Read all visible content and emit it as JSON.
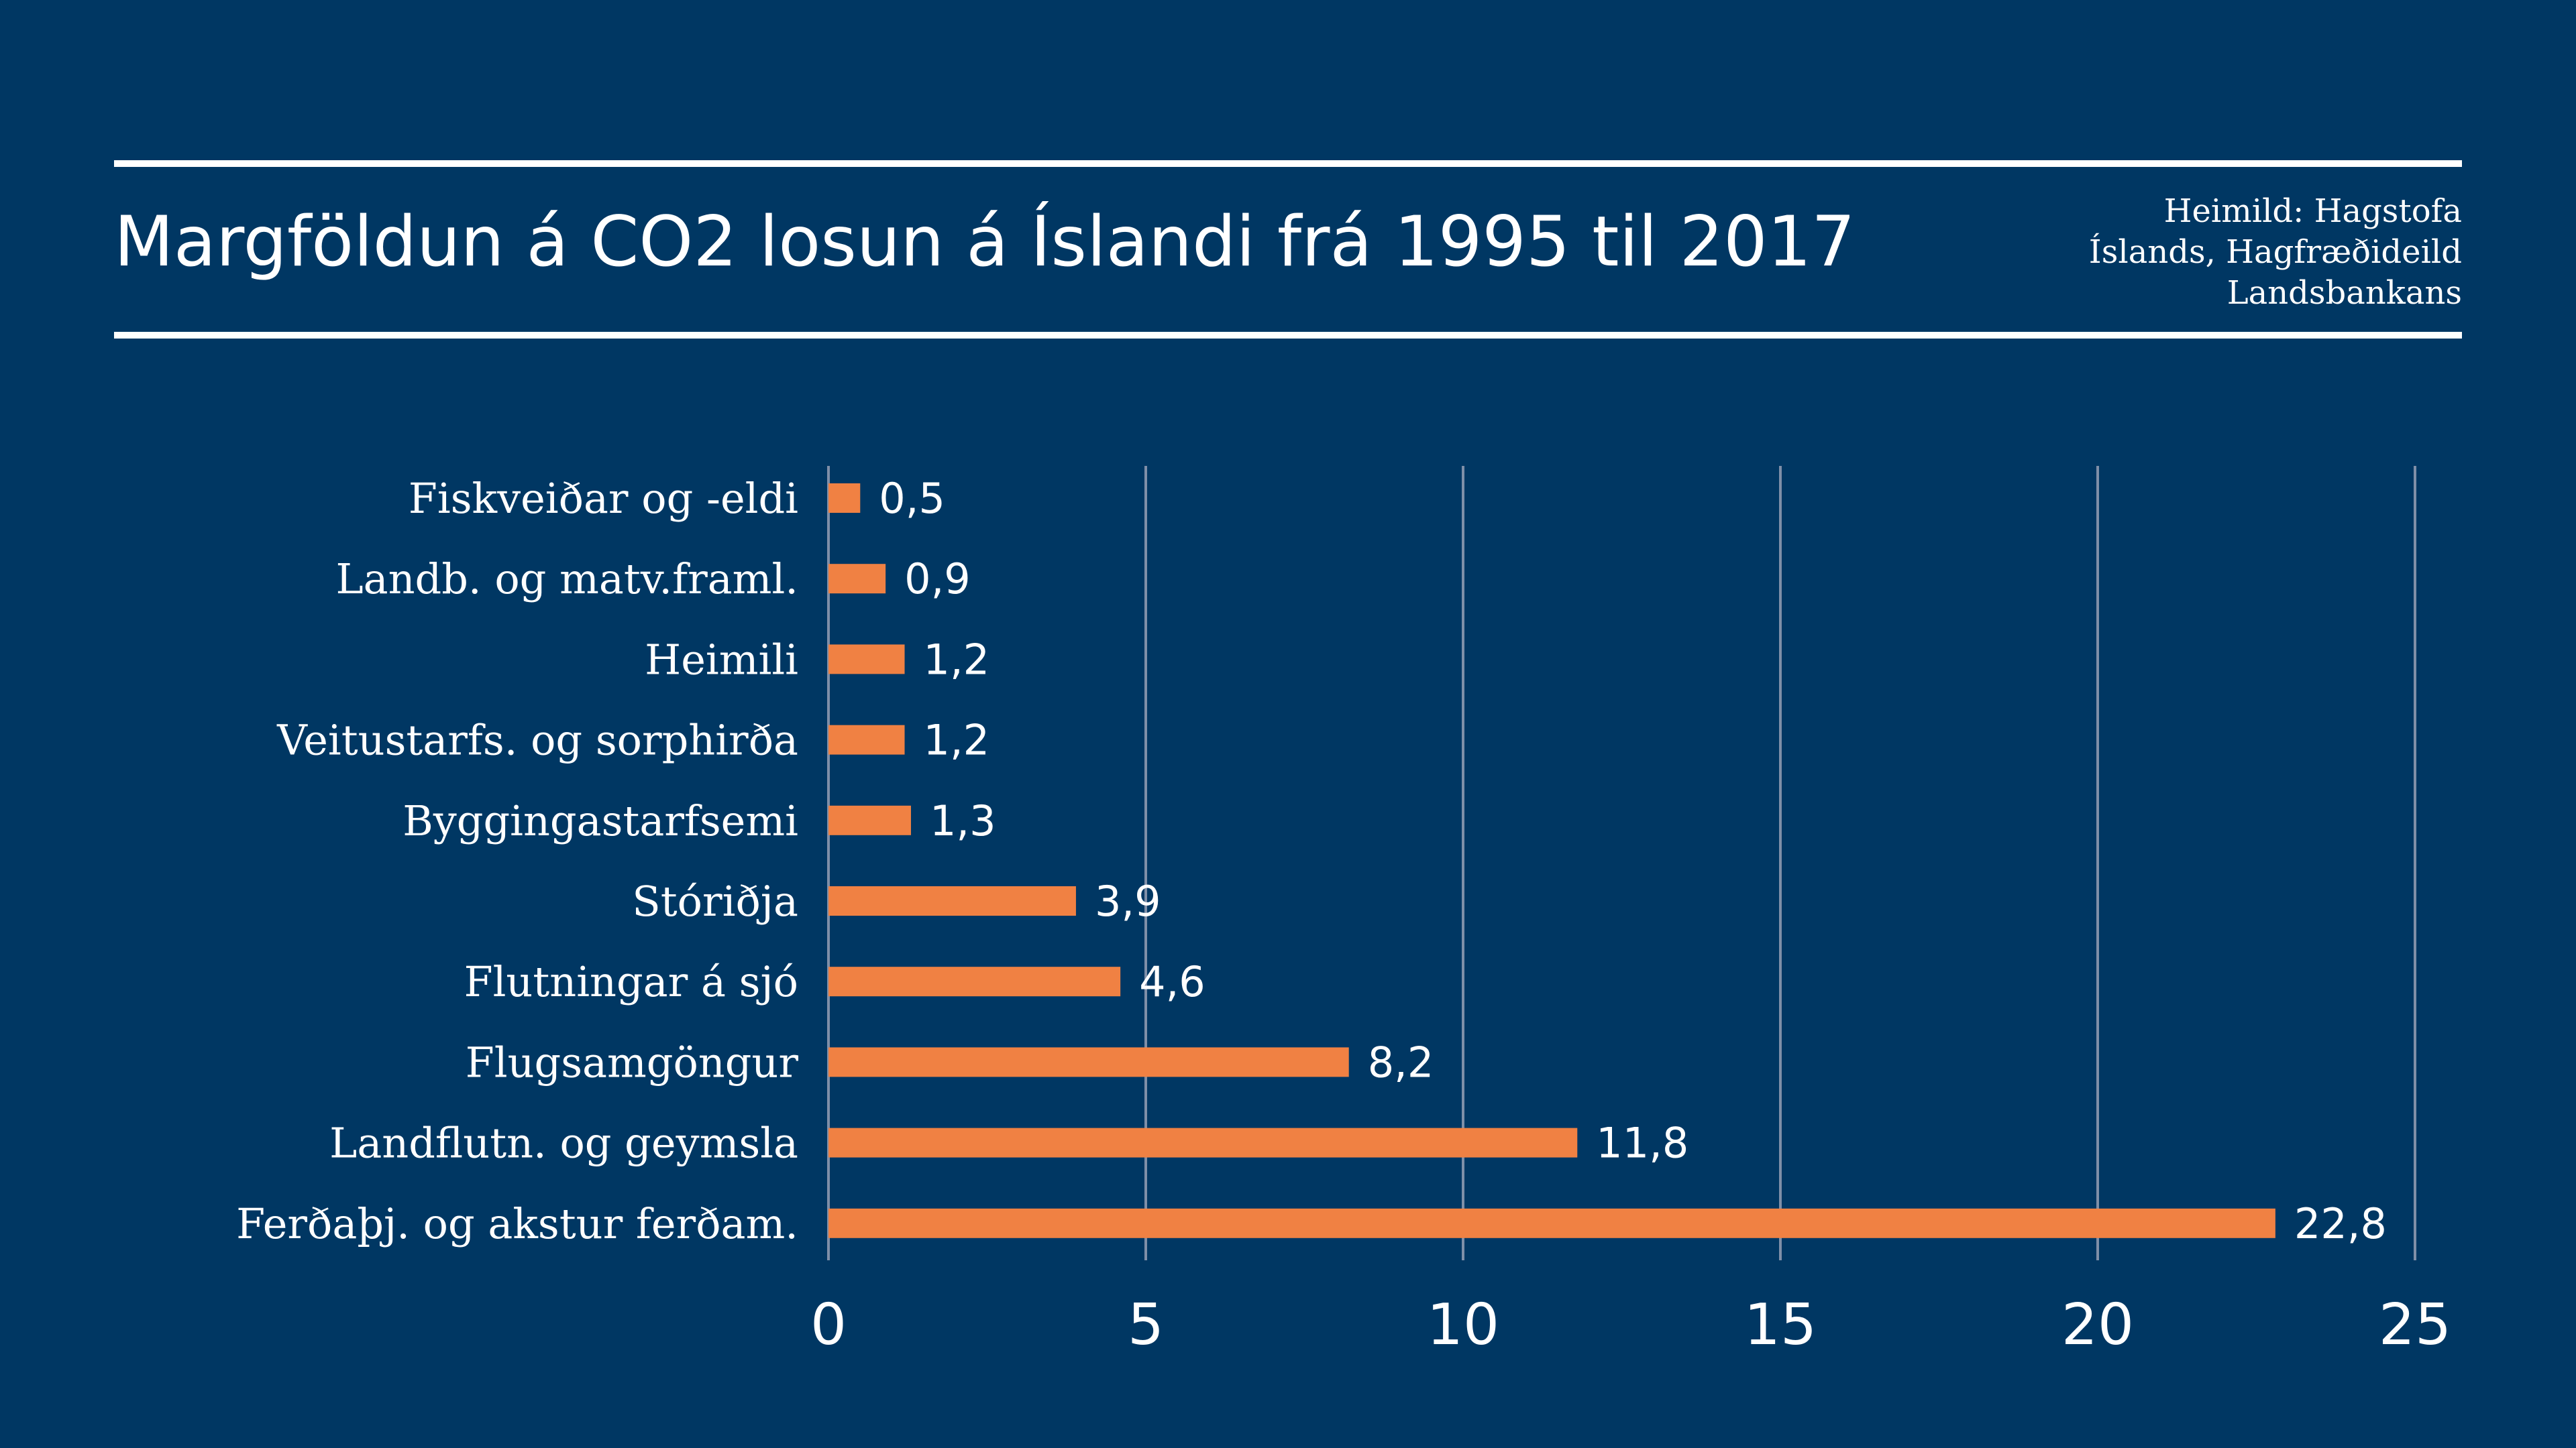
{
  "header": {
    "title": "Margföldun á CO2 losun á Íslandi frá 1995 til 2017",
    "source_lines": [
      "Heimild: Hagstofa",
      "Íslands, Hagfræðideild",
      "Landsbankans"
    ]
  },
  "colors": {
    "background": "#003763",
    "bar": "#F08143",
    "gridline": "#7f8fa8",
    "text": "#ffffff"
  },
  "chart_data": {
    "type": "bar",
    "orientation": "horizontal",
    "title": "Margföldun á CO2 losun á Íslandi frá 1995 til 2017",
    "xlabel": "",
    "ylabel": "",
    "categories": [
      "Fiskveiðar og -eldi",
      "Landb. og matv.framl.",
      "Heimili",
      "Veitustarfs. og sorphirða",
      "Byggingastarfsemi",
      "Stóriðja",
      "Flutningar á sjó",
      "Flugsamgöngur",
      "Landflutn. og geymsla",
      "Ferðaþj. og akstur ferðam."
    ],
    "values": [
      0.5,
      0.9,
      1.2,
      1.2,
      1.3,
      3.9,
      4.6,
      8.2,
      11.8,
      22.8
    ],
    "value_labels": [
      "0,5",
      "0,9",
      "1,2",
      "1,2",
      "1,3",
      "3,9",
      "4,6",
      "8,2",
      "11,8",
      "22,8"
    ],
    "xlim": [
      0,
      25
    ],
    "xticks": [
      0,
      5,
      10,
      15,
      20,
      25
    ],
    "xtick_labels": [
      "0",
      "5",
      "10",
      "15",
      "20",
      "25"
    ],
    "grid": true,
    "legend": "none"
  }
}
